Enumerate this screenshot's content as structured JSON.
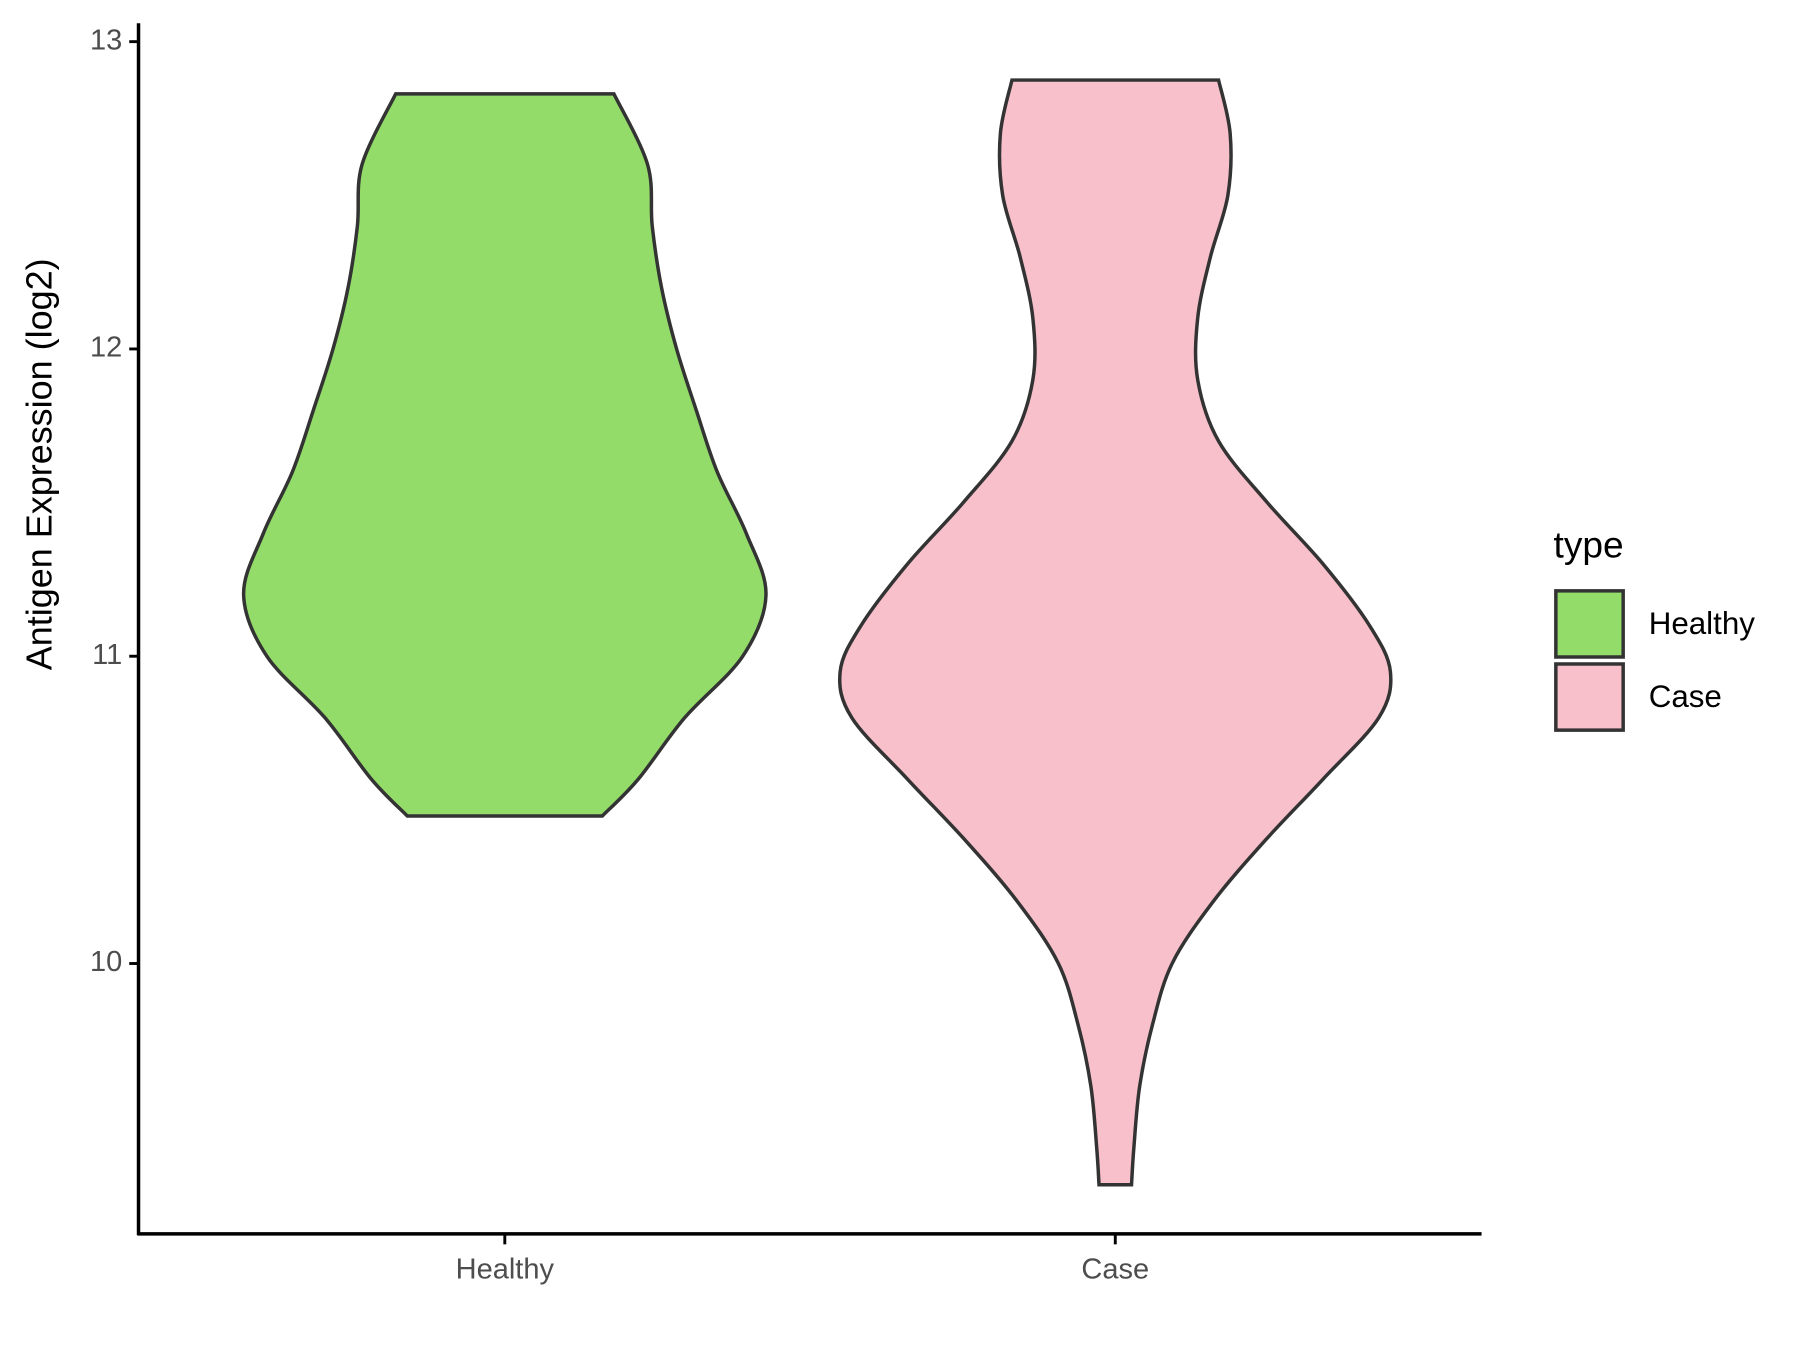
{
  "chart_data": {
    "type": "violin",
    "y_label": "Antigen Expression (log2)",
    "legend_title": "type",
    "categories": [
      "Healthy",
      "Case"
    ],
    "ylim": [
      9.12,
      13.06
    ],
    "yticks": [
      10,
      11,
      12,
      13
    ],
    "series": [
      {
        "name": "Healthy",
        "color": "#93dc6a",
        "y": [
          12.83,
          12.6,
          12.4,
          12.2,
          12.0,
          11.8,
          11.6,
          11.4,
          11.2,
          11.0,
          10.8,
          10.6,
          10.48
        ],
        "density": [
          0.94,
          1.23,
          1.27,
          1.35,
          1.48,
          1.65,
          1.83,
          2.08,
          2.25,
          2.05,
          1.55,
          1.15,
          0.84
        ]
      },
      {
        "name": "Case",
        "color": "#f7c0cb",
        "y": [
          12.875,
          12.7,
          12.5,
          12.3,
          12.1,
          11.9,
          11.7,
          11.5,
          11.3,
          11.1,
          10.95,
          10.8,
          10.6,
          10.4,
          10.2,
          10.0,
          9.8,
          9.6,
          9.4,
          9.28
        ],
        "density": [
          0.89,
          0.99,
          0.97,
          0.82,
          0.71,
          0.71,
          0.89,
          1.31,
          1.79,
          2.19,
          2.37,
          2.27,
          1.79,
          1.29,
          0.84,
          0.49,
          0.32,
          0.21,
          0.16,
          0.14
        ]
      }
    ]
  }
}
